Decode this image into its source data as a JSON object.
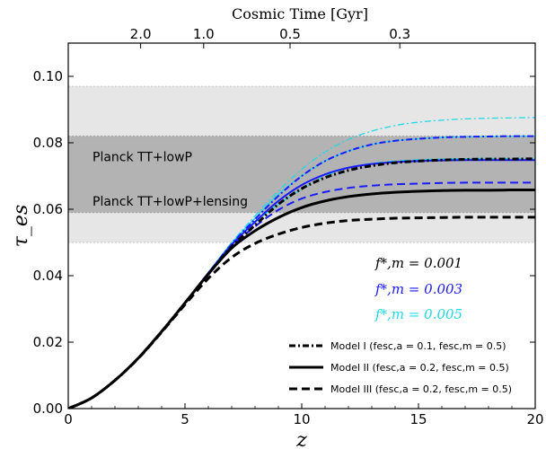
{
  "chart_data": {
    "type": "line",
    "xlabel": "z",
    "ylabel": "τ_es",
    "top_axis_label": "Cosmic Time [Gyr]",
    "xlim": [
      0,
      20
    ],
    "ylim": [
      0.0,
      0.11
    ],
    "x_ticks": [
      0,
      5,
      10,
      15,
      20
    ],
    "x_tick_labels": [
      "0",
      "5",
      "10",
      "15",
      "20"
    ],
    "y_ticks": [
      0.0,
      0.02,
      0.04,
      0.06,
      0.08,
      0.1
    ],
    "y_tick_labels": [
      "0.00",
      "0.02",
      "0.04",
      "0.06",
      "0.08",
      "0.10"
    ],
    "top_ticks": [
      {
        "label": "2.0",
        "z": 3.1
      },
      {
        "label": "1.0",
        "z": 5.8
      },
      {
        "label": "0.5",
        "z": 9.5
      },
      {
        "label": "0.3",
        "z": 14.2
      }
    ],
    "bands": [
      {
        "name": "Planck TT+lowP",
        "range": [
          0.05,
          0.097
        ],
        "color": "#e6e6e6"
      },
      {
        "name": "Planck TT+lowP+lensing",
        "range": [
          0.059,
          0.082
        ],
        "color": "#b3b3b3"
      }
    ],
    "fstar_labels": [
      {
        "text": "f*,m = 0.001",
        "color": "#000000"
      },
      {
        "text": "f*,m = 0.003",
        "color": "#1a1aff"
      },
      {
        "text": "f*,m = 0.005",
        "color": "#22d8e8"
      }
    ],
    "legend": [
      {
        "label": "Model I (fesc,a = 0.1, fesc,m = 0.5)",
        "style": "dashdot"
      },
      {
        "label": "Model II (fesc,a = 0.2, fesc,m = 0.5)",
        "style": "solid"
      },
      {
        "label": "Model III (fesc,a = 0.2, fesc,m = 0.5)",
        "style": "dashed"
      }
    ],
    "x": [
      0,
      1,
      2,
      3,
      4,
      5,
      6,
      7,
      8,
      9,
      10,
      11,
      12,
      13,
      14,
      15,
      16,
      17,
      18,
      19,
      20
    ],
    "series": [
      {
        "model": "I",
        "fstar": "0.001",
        "color": "#000000",
        "style": "dashdot",
        "values": [
          0.0,
          0.0032,
          0.0085,
          0.0152,
          0.0232,
          0.0318,
          0.0405,
          0.0487,
          0.0552,
          0.0615,
          0.0662,
          0.0695,
          0.0717,
          0.0731,
          0.074,
          0.0745,
          0.0748,
          0.075,
          0.0751,
          0.0751,
          0.0752
        ]
      },
      {
        "model": "II",
        "fstar": "0.001",
        "color": "#000000",
        "style": "solid",
        "values": [
          0.0,
          0.0032,
          0.0085,
          0.0152,
          0.0232,
          0.0318,
          0.0405,
          0.0483,
          0.0535,
          0.0575,
          0.0605,
          0.0625,
          0.0638,
          0.0646,
          0.0651,
          0.0654,
          0.0656,
          0.0657,
          0.0657,
          0.0658,
          0.0658
        ]
      },
      {
        "model": "III",
        "fstar": "0.001",
        "color": "#000000",
        "style": "dashed",
        "values": [
          0.0,
          0.0032,
          0.0085,
          0.0151,
          0.023,
          0.0313,
          0.0392,
          0.0455,
          0.0497,
          0.0525,
          0.0545,
          0.0558,
          0.0566,
          0.057,
          0.0573,
          0.0574,
          0.0575,
          0.0576,
          0.0576,
          0.0576,
          0.0576
        ]
      },
      {
        "model": "I",
        "fstar": "0.003",
        "color": "#1a1aff",
        "style": "dashdot",
        "values": [
          0.0,
          0.0032,
          0.0085,
          0.0152,
          0.0232,
          0.0319,
          0.0408,
          0.0495,
          0.057,
          0.064,
          0.07,
          0.0745,
          0.0775,
          0.0795,
          0.0806,
          0.0812,
          0.0816,
          0.0818,
          0.0819,
          0.082,
          0.082
        ]
      },
      {
        "model": "II",
        "fstar": "0.003",
        "color": "#1a1aff",
        "style": "solid",
        "values": [
          0.0,
          0.0032,
          0.0085,
          0.0152,
          0.0232,
          0.0319,
          0.0408,
          0.0493,
          0.0562,
          0.0625,
          0.0673,
          0.0705,
          0.0725,
          0.0736,
          0.0742,
          0.0745,
          0.0747,
          0.0748,
          0.0748,
          0.0748,
          0.0748
        ]
      },
      {
        "model": "III",
        "fstar": "0.003",
        "color": "#1a1aff",
        "style": "dashed",
        "values": [
          0.0,
          0.0032,
          0.0085,
          0.0152,
          0.0232,
          0.0318,
          0.0405,
          0.0488,
          0.0548,
          0.0598,
          0.0632,
          0.0652,
          0.0664,
          0.0671,
          0.0675,
          0.0677,
          0.0679,
          0.068,
          0.068,
          0.068,
          0.068
        ]
      },
      {
        "model": "I",
        "fstar": "0.005",
        "color": "#22d8e8",
        "style": "dashdot",
        "values": [
          0.0,
          0.0032,
          0.0085,
          0.0152,
          0.0233,
          0.032,
          0.041,
          0.05,
          0.058,
          0.0655,
          0.072,
          0.0772,
          0.081,
          0.0835,
          0.0852,
          0.0862,
          0.0868,
          0.0872,
          0.0874,
          0.0875,
          0.0876
        ]
      },
      {
        "model": "II",
        "fstar": "0.005",
        "color": "#22d8e8",
        "style": "solid",
        "values": [
          0.0,
          0.0032,
          0.0085,
          0.0152,
          0.0233,
          0.032,
          0.041,
          0.0498,
          0.0573,
          0.0645,
          0.07,
          0.0745,
          0.0775,
          0.0795,
          0.0806,
          0.0812,
          0.0816,
          0.0818,
          0.0819,
          0.082,
          0.082
        ]
      },
      {
        "model": "III",
        "fstar": "0.005",
        "color": "#22d8e8",
        "style": "dashed",
        "values": [
          0.0,
          0.0032,
          0.0085,
          0.0152,
          0.0232,
          0.0319,
          0.0408,
          0.0494,
          0.056,
          0.0615,
          0.066,
          0.07,
          0.0725,
          0.0738,
          0.0745,
          0.0749,
          0.0751,
          0.0752,
          0.0753,
          0.0753,
          0.0753
        ]
      }
    ]
  }
}
